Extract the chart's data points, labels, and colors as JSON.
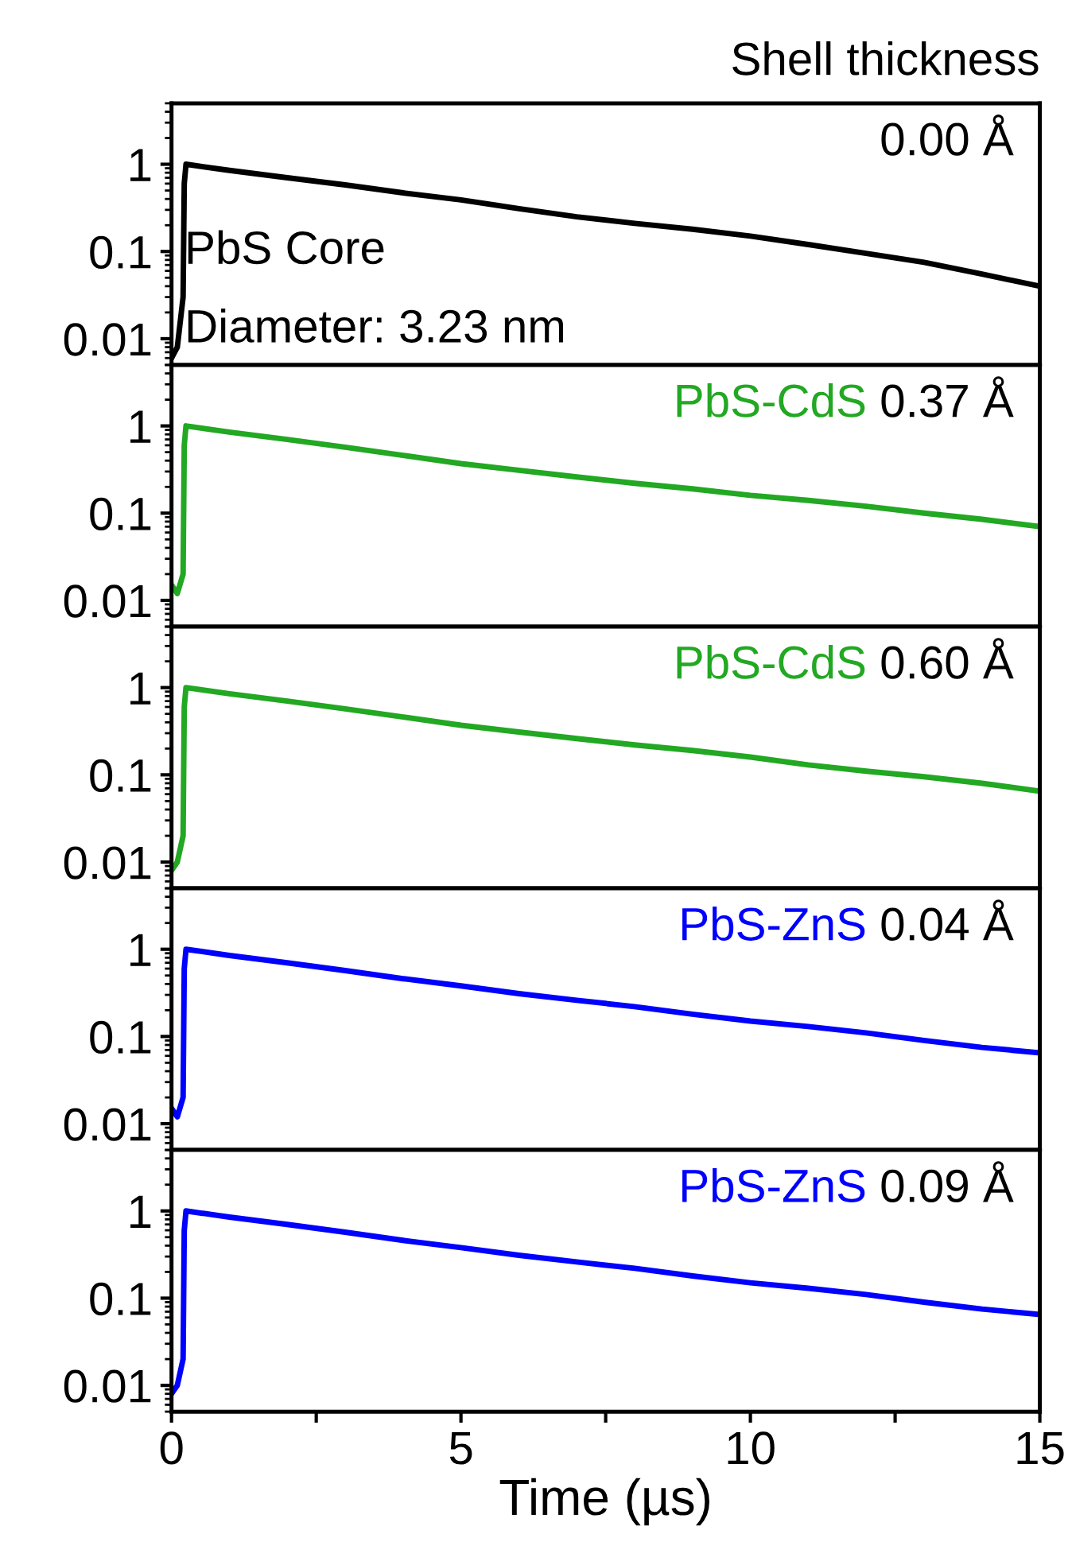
{
  "chart_data": [
    {
      "type": "line",
      "title": "Shell thickness",
      "x": [
        0,
        0.1,
        0.2,
        0.22,
        0.25,
        1,
        2,
        3,
        4,
        5,
        6,
        7,
        8,
        9,
        10,
        11,
        12,
        13,
        14,
        15
      ],
      "series": [
        {
          "color": "#000000",
          "values": [
            0.006,
            0.008,
            0.03,
            0.6,
            1,
            0.85,
            0.7,
            0.58,
            0.47,
            0.39,
            0.31,
            0.25,
            0.21,
            0.18,
            0.15,
            0.12,
            0.095,
            0.075,
            0.055,
            0.04
          ]
        }
      ],
      "annotations": [
        "0.00 Å",
        "PbS Core",
        "Diameter: 3.23 nm"
      ],
      "log": "y",
      "xlim": [
        0,
        15
      ],
      "xticks": [
        0,
        {
          "value": 2.5,
          "label": null
        },
        5,
        {
          "value": 7.5,
          "label": null
        },
        10,
        {
          "value": 12.5,
          "label": null
        },
        15
      ],
      "ylim": [
        0.005,
        5
      ],
      "yticks": [
        0.01,
        0.1,
        1
      ],
      "tick_labels": "y",
      "grid": false,
      "legend": false
    },
    {
      "type": "line",
      "x": [
        0,
        0.1,
        0.2,
        0.22,
        0.25,
        1,
        2,
        3,
        4,
        5,
        6,
        7,
        8,
        9,
        10,
        11,
        12,
        13,
        14,
        15
      ],
      "series": [
        {
          "name": "PbS-CdS",
          "color": "#22a822",
          "values": [
            0.015,
            0.012,
            0.02,
            0.6,
            1,
            0.85,
            0.7,
            0.57,
            0.46,
            0.37,
            0.31,
            0.26,
            0.22,
            0.19,
            0.16,
            0.14,
            0.12,
            0.1,
            0.085,
            0.07
          ]
        }
      ],
      "annotations": [
        "0.37 Å"
      ],
      "log": "y",
      "xlim": [
        0,
        15
      ],
      "xticks": [
        0,
        {
          "value": 2.5,
          "label": null
        },
        5,
        {
          "value": 7.5,
          "label": null
        },
        10,
        {
          "value": 12.5,
          "label": null
        },
        15
      ],
      "ylim": [
        0.005,
        5
      ],
      "yticks": [
        0.01,
        0.1,
        1
      ],
      "tick_labels": "y",
      "grid": false,
      "legend": false
    },
    {
      "type": "line",
      "x": [
        0,
        0.1,
        0.2,
        0.22,
        0.25,
        1,
        2,
        3,
        4,
        5,
        6,
        7,
        8,
        9,
        10,
        11,
        12,
        13,
        14,
        15
      ],
      "series": [
        {
          "name": "PbS-CdS",
          "color": "#22a822",
          "values": [
            0.008,
            0.01,
            0.02,
            0.6,
            1,
            0.85,
            0.7,
            0.57,
            0.46,
            0.37,
            0.31,
            0.26,
            0.22,
            0.19,
            0.16,
            0.13,
            0.11,
            0.095,
            0.08,
            0.065
          ]
        }
      ],
      "annotations": [
        "0.60 Å"
      ],
      "log": "y",
      "xlim": [
        0,
        15
      ],
      "xticks": [
        0,
        {
          "value": 2.5,
          "label": null
        },
        5,
        {
          "value": 7.5,
          "label": null
        },
        10,
        {
          "value": 12.5,
          "label": null
        },
        15
      ],
      "ylim": [
        0.005,
        5
      ],
      "yticks": [
        0.01,
        0.1,
        1
      ],
      "tick_labels": "y",
      "grid": false,
      "legend": false
    },
    {
      "type": "line",
      "x": [
        0,
        0.1,
        0.2,
        0.22,
        0.25,
        1,
        2,
        3,
        4,
        5,
        6,
        7,
        8,
        9,
        10,
        11,
        12,
        13,
        14,
        15
      ],
      "series": [
        {
          "name": "PbS-ZnS",
          "color": "#0000ff",
          "values": [
            0.015,
            0.012,
            0.02,
            0.6,
            1,
            0.85,
            0.7,
            0.57,
            0.46,
            0.38,
            0.31,
            0.26,
            0.22,
            0.18,
            0.15,
            0.13,
            0.11,
            0.09,
            0.075,
            0.065
          ]
        }
      ],
      "annotations": [
        "0.04 Å"
      ],
      "log": "y",
      "xlim": [
        0,
        15
      ],
      "xticks": [
        0,
        {
          "value": 2.5,
          "label": null
        },
        5,
        {
          "value": 7.5,
          "label": null
        },
        10,
        {
          "value": 12.5,
          "label": null
        },
        15
      ],
      "ylim": [
        0.005,
        5
      ],
      "yticks": [
        0.01,
        0.1,
        1
      ],
      "tick_labels": "y",
      "grid": false,
      "legend": false
    },
    {
      "type": "line",
      "xlabel": "Time (µs)",
      "x": [
        0,
        0.1,
        0.2,
        0.22,
        0.25,
        1,
        2,
        3,
        4,
        5,
        6,
        7,
        8,
        9,
        10,
        11,
        12,
        13,
        14,
        15
      ],
      "series": [
        {
          "name": "PbS-ZnS",
          "color": "#0000ff",
          "values": [
            0.008,
            0.01,
            0.02,
            0.6,
            1,
            0.85,
            0.7,
            0.57,
            0.46,
            0.38,
            0.31,
            0.26,
            0.22,
            0.18,
            0.15,
            0.13,
            0.11,
            0.09,
            0.075,
            0.065
          ]
        }
      ],
      "annotations": [
        "0.09 Å"
      ],
      "log": "y",
      "xlim": [
        0,
        15
      ],
      "xticks": [
        0,
        {
          "value": 2.5,
          "label": null
        },
        5,
        {
          "value": 7.5,
          "label": null
        },
        10,
        {
          "value": 12.5,
          "label": null
        },
        15
      ],
      "ylim": [
        0.005,
        5
      ],
      "yticks": [
        0.01,
        0.1,
        1
      ],
      "grid": false,
      "legend": false
    }
  ]
}
